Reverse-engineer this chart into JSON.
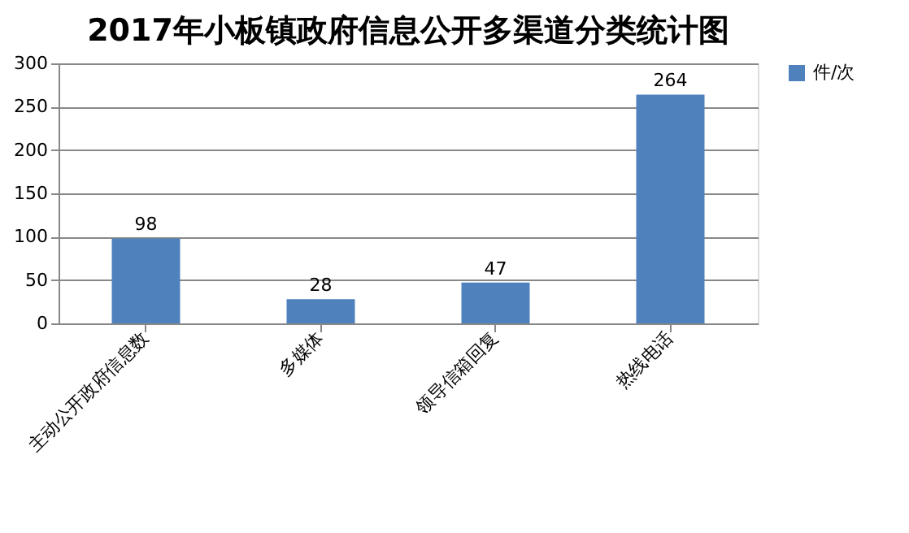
{
  "chart_data": {
    "type": "bar",
    "title": "2017年小板镇政府信息公开多渠道分类统计图",
    "categories": [
      "主动公开政府信息数",
      "多媒体",
      "领导信箱回复",
      "热线电话"
    ],
    "series": [
      {
        "name": "件/次",
        "color": "#4f81bd",
        "values": [
          98,
          28,
          47,
          264
        ]
      }
    ],
    "ylim": [
      0,
      300
    ],
    "yticks": [
      0,
      50,
      100,
      150,
      200,
      250,
      300
    ],
    "grid": "y",
    "legend": "right",
    "data_labels": true
  }
}
